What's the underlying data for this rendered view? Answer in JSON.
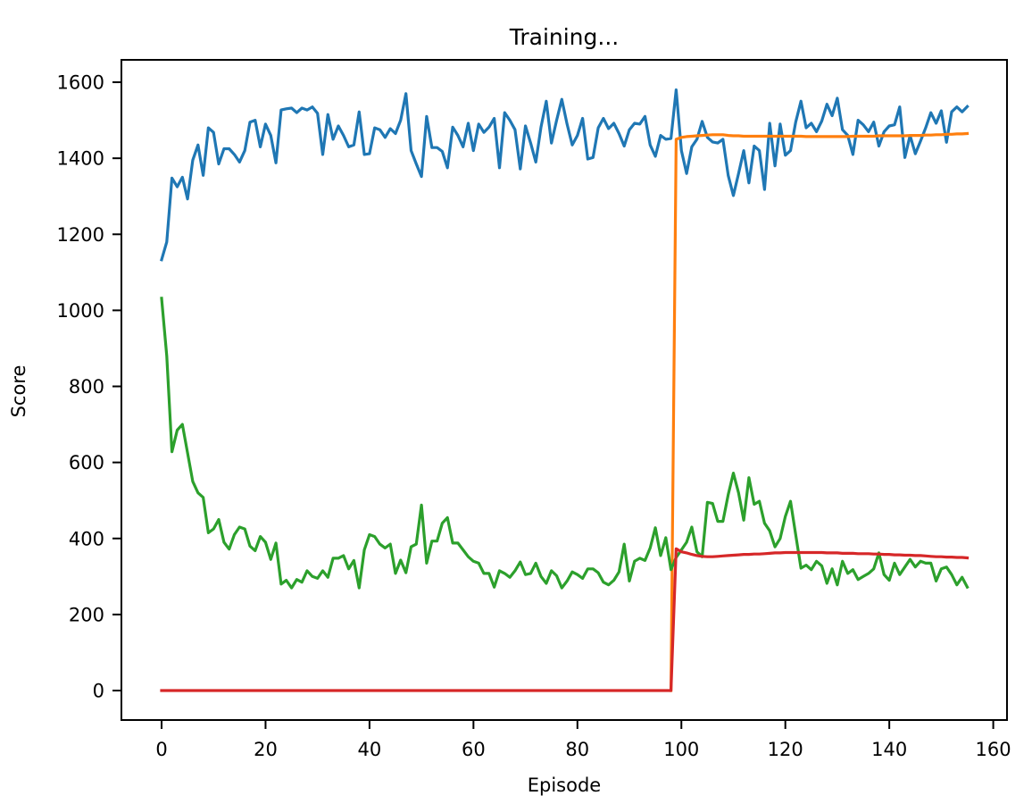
{
  "chart_data": {
    "type": "line",
    "title": "Training...",
    "xlabel": "Episode",
    "ylabel": "Score",
    "xlim": [
      -7.8,
      162.8
    ],
    "ylim": [
      -78,
      1655
    ],
    "xticks": [
      0,
      20,
      40,
      60,
      80,
      100,
      120,
      140,
      160
    ],
    "yticks": [
      0,
      200,
      400,
      600,
      800,
      1000,
      1200,
      1400,
      1600
    ],
    "grid": false,
    "legend": null,
    "series": [
      {
        "name": "blue",
        "color": "#1f77b4",
        "x_start": 0,
        "values": [
          1133,
          1180,
          1348,
          1325,
          1350,
          1293,
          1395,
          1435,
          1355,
          1480,
          1468,
          1385,
          1425,
          1425,
          1410,
          1390,
          1420,
          1495,
          1500,
          1430,
          1490,
          1460,
          1388,
          1527,
          1530,
          1532,
          1520,
          1532,
          1527,
          1535,
          1518,
          1410,
          1515,
          1450,
          1485,
          1460,
          1430,
          1435,
          1522,
          1410,
          1412,
          1480,
          1475,
          1455,
          1478,
          1465,
          1500,
          1570,
          1420,
          1385,
          1352,
          1510,
          1428,
          1428,
          1418,
          1375,
          1482,
          1460,
          1430,
          1492,
          1420,
          1490,
          1468,
          1482,
          1505,
          1375,
          1520,
          1500,
          1475,
          1372,
          1485,
          1440,
          1390,
          1482,
          1550,
          1440,
          1500,
          1555,
          1490,
          1435,
          1460,
          1505,
          1398,
          1402,
          1480,
          1505,
          1478,
          1492,
          1465,
          1432,
          1475,
          1492,
          1490,
          1510,
          1435,
          1405,
          1460,
          1450,
          1452,
          1580,
          1420,
          1360,
          1430,
          1450,
          1497,
          1455,
          1443,
          1440,
          1450,
          1355,
          1302,
          1360,
          1420,
          1335,
          1432,
          1420,
          1318,
          1492,
          1380,
          1490,
          1408,
          1420,
          1495,
          1550,
          1480,
          1492,
          1470,
          1498,
          1542,
          1512,
          1558,
          1475,
          1460,
          1410,
          1500,
          1488,
          1470,
          1495,
          1432,
          1470,
          1485,
          1488,
          1535,
          1402,
          1460,
          1412,
          1445,
          1480,
          1520,
          1492,
          1525,
          1442,
          1522,
          1535,
          1522,
          1536
        ]
      },
      {
        "name": "orange",
        "color": "#ff7f0e",
        "x_start": 98,
        "values": [
          0,
          1450,
          1455,
          1457,
          1458,
          1459,
          1460,
          1461,
          1462,
          1462,
          1462,
          1460,
          1459,
          1459,
          1458,
          1458,
          1458,
          1458,
          1458,
          1458,
          1458,
          1458,
          1458,
          1458,
          1458,
          1458,
          1457,
          1457,
          1457,
          1457,
          1457,
          1457,
          1457,
          1457,
          1457,
          1458,
          1458,
          1458,
          1458,
          1458,
          1459,
          1459,
          1459,
          1459,
          1459,
          1459,
          1460,
          1460,
          1460,
          1461,
          1461,
          1462,
          1462,
          1463,
          1463,
          1464,
          1464,
          1465
        ]
      },
      {
        "name": "green",
        "color": "#2ca02c",
        "x_start": 0,
        "values": [
          1032,
          880,
          628,
          685,
          700,
          625,
          550,
          520,
          508,
          415,
          425,
          450,
          390,
          372,
          410,
          430,
          425,
          380,
          368,
          405,
          390,
          345,
          388,
          280,
          290,
          270,
          292,
          285,
          315,
          300,
          295,
          315,
          298,
          348,
          348,
          355,
          320,
          342,
          270,
          370,
          410,
          405,
          385,
          375,
          385,
          308,
          343,
          310,
          378,
          385,
          488,
          335,
          393,
          393,
          440,
          455,
          388,
          388,
          370,
          352,
          340,
          335,
          308,
          308,
          272,
          315,
          308,
          298,
          315,
          338,
          305,
          308,
          335,
          300,
          282,
          315,
          302,
          270,
          288,
          312,
          305,
          295,
          320,
          320,
          310,
          285,
          278,
          290,
          312,
          385,
          288,
          340,
          348,
          342,
          375,
          428,
          355,
          402,
          318,
          350,
          370,
          390,
          430,
          365,
          352,
          495,
          492,
          445,
          445,
          515,
          572,
          520,
          448,
          560,
          490,
          498,
          440,
          420,
          378,
          400,
          458,
          498,
          410,
          322,
          330,
          318,
          340,
          328,
          282,
          320,
          278,
          340,
          308,
          318,
          292,
          300,
          308,
          320,
          362,
          305,
          290,
          335,
          305,
          325,
          345,
          325,
          340,
          335,
          335,
          288,
          320,
          325,
          305,
          278,
          298,
          272
        ]
      },
      {
        "name": "red",
        "color": "#d62728",
        "x_start": 0,
        "values": [
          0,
          0,
          0,
          0,
          0,
          0,
          0,
          0,
          0,
          0,
          0,
          0,
          0,
          0,
          0,
          0,
          0,
          0,
          0,
          0,
          0,
          0,
          0,
          0,
          0,
          0,
          0,
          0,
          0,
          0,
          0,
          0,
          0,
          0,
          0,
          0,
          0,
          0,
          0,
          0,
          0,
          0,
          0,
          0,
          0,
          0,
          0,
          0,
          0,
          0,
          0,
          0,
          0,
          0,
          0,
          0,
          0,
          0,
          0,
          0,
          0,
          0,
          0,
          0,
          0,
          0,
          0,
          0,
          0,
          0,
          0,
          0,
          0,
          0,
          0,
          0,
          0,
          0,
          0,
          0,
          0,
          0,
          0,
          0,
          0,
          0,
          0,
          0,
          0,
          0,
          0,
          0,
          0,
          0,
          0,
          0,
          0,
          0,
          0,
          373,
          365,
          362,
          358,
          355,
          353,
          352,
          352,
          353,
          354,
          355,
          356,
          357,
          358,
          358,
          359,
          359,
          360,
          361,
          362,
          362,
          363,
          363,
          363,
          363,
          363,
          363,
          363,
          363,
          362,
          362,
          362,
          361,
          361,
          361,
          360,
          360,
          360,
          359,
          359,
          358,
          358,
          357,
          357,
          356,
          356,
          355,
          355,
          354,
          353,
          352,
          352,
          351,
          351,
          350,
          350,
          349
        ]
      }
    ]
  }
}
